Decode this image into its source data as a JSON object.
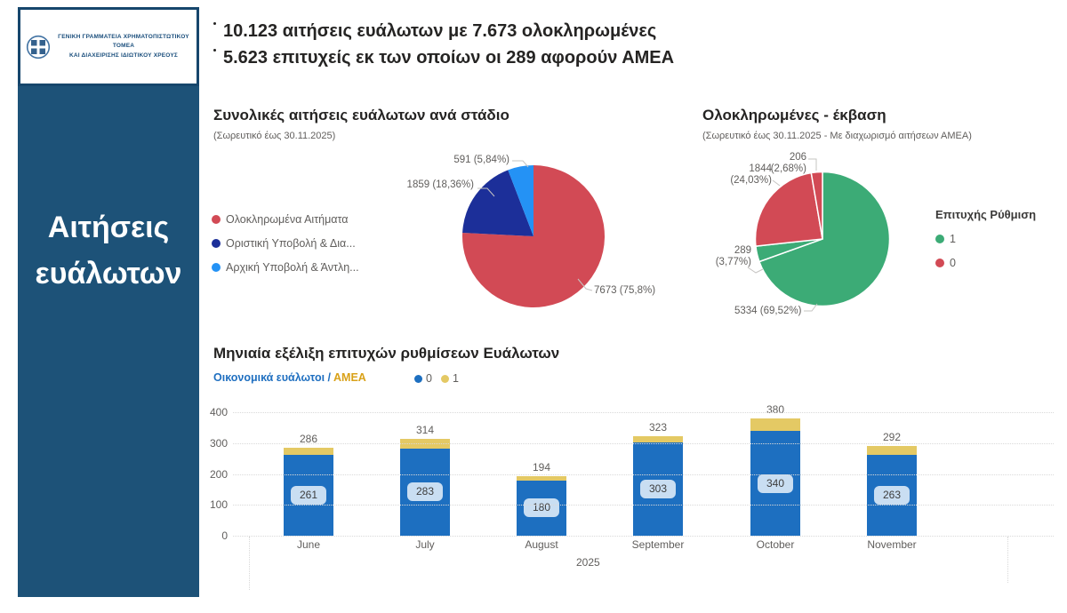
{
  "sidebar": {
    "logo_line1": "ΓΕΝΙΚΗ ΓΡΑΜΜΑΤΕΙΑ ΧΡΗΜΑΤΟΠΙΣΤΩΤΙΚΟΥ ΤΟΜΕΑ",
    "logo_line2": "ΚΑΙ ΔΙΑΧΕΙΡΙΣΗΣ ΙΔΙΩΤΙΚΟΥ ΧΡΕΟΥΣ",
    "title_line1": "Αιτήσεις",
    "title_line2": "ευάλωτων",
    "bg_color": "#1d5278"
  },
  "header": {
    "line1": "10.123 αιτήσεις ευάλωτων με 7.673 ολοκληρωμένες",
    "line2": "5.623 επιτυχείς εκ των οποίων οι 289 αφορούν ΑΜΕΑ"
  },
  "chart_data": [
    {
      "type": "pie",
      "title": "Συνολικές αιτήσεις ευάλωτων ανά στάδιο",
      "subtitle": "(Σωρευτικό έως 30.11.2025)",
      "legend_position": "left",
      "slices": [
        {
          "id": "completed",
          "label": "Ολοκληρωμένα Αιτήματα",
          "value": 7673,
          "pct": "75,8%",
          "data_label": "7673 (75,8%)",
          "color": "#d24a55"
        },
        {
          "id": "final-submission",
          "label": "Οριστική Υποβολή & Δια...",
          "value": 1859,
          "pct": "18,36%",
          "data_label": "1859 (18,36%)",
          "color": "#1c2f99"
        },
        {
          "id": "initial-submission",
          "label": "Αρχική Υποβολή & Άντλη...",
          "value": 591,
          "pct": "5,84%",
          "data_label": "591 (5,84%)",
          "color": "#2492f5"
        }
      ]
    },
    {
      "type": "pie",
      "title": "Ολοκληρωμένες - έκβαση",
      "subtitle": "(Σωρευτικό έως 30.11.2025 - Με διαχωρισμό αιτήσεων ΑΜΕΑ)",
      "legend_title": "Επιτυχής Ρύθμιση",
      "legend": [
        {
          "label": "1",
          "color": "#3cab76"
        },
        {
          "label": "0",
          "color": "#d24a55"
        }
      ],
      "slices": [
        {
          "id": "success-1",
          "value": 5334,
          "pct": "69,52%",
          "data_label": "5334 (69,52%)",
          "color": "#3cab76"
        },
        {
          "id": "success-1-amea",
          "value": 289,
          "pct": "3,77%",
          "dl1": "289",
          "dl2": "(3,77%)",
          "color": "#3cab76"
        },
        {
          "id": "fail-0",
          "value": 1844,
          "pct": "24,03%",
          "dl1": "1844",
          "dl2": "(24,03%)",
          "color": "#d24a55"
        },
        {
          "id": "fail-0-amea",
          "value": 206,
          "pct": "2,68%",
          "dl1": "206",
          "dl2": "(2,68%)",
          "color": "#d24a55"
        }
      ]
    },
    {
      "type": "bar",
      "stacked": true,
      "title": "Μηνιαία εξέλιξη επιτυχών ρυθμίσεων Ευάλωτων",
      "legend_left": [
        {
          "text": "Οικονομικά ευάλωτοι",
          "color": "#1f6fc0"
        },
        {
          "text": " / ",
          "color": "#1f6fc0"
        },
        {
          "text": "ΑΜΕΑ",
          "color": "#d9a118"
        }
      ],
      "categories": [
        "June",
        "July",
        "August",
        "September",
        "October",
        "November"
      ],
      "series": [
        {
          "name": "0",
          "color": "#1d6fc0",
          "values": [
            261,
            283,
            180,
            303,
            340,
            263
          ]
        },
        {
          "name": "1",
          "color": "#e4c964",
          "values": [
            25,
            31,
            14,
            20,
            40,
            29
          ]
        }
      ],
      "totals": [
        286,
        314,
        194,
        323,
        380,
        292
      ],
      "inner_labels": [
        "261",
        "283",
        "180",
        "303",
        "340",
        "263"
      ],
      "xlabel": "2025",
      "ylim": [
        0,
        400
      ],
      "yticks": [
        400,
        300,
        200,
        100,
        0
      ],
      "grid": "dotted-horizontal"
    }
  ]
}
